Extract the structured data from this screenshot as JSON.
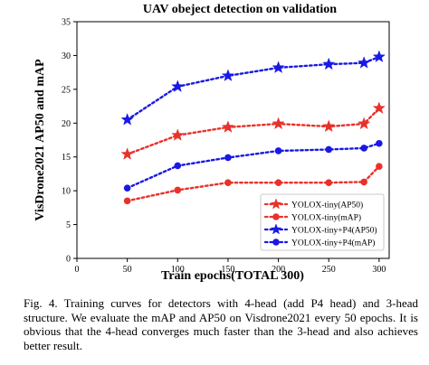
{
  "chart_data": {
    "type": "line",
    "title": "UAV obeject detection on validation",
    "xlabel": "Train epochs(TOTAL 300)",
    "ylabel": "VisDrone2021 AP50 and mAP",
    "xlim": [
      0,
      310
    ],
    "ylim": [
      0,
      35
    ],
    "xticks": [
      0,
      50,
      100,
      150,
      200,
      250,
      300
    ],
    "yticks": [
      0,
      5,
      10,
      15,
      20,
      25,
      30,
      35
    ],
    "grid": false,
    "legend_position": "lower-right",
    "x": [
      50,
      100,
      150,
      200,
      250,
      285,
      300
    ],
    "series": [
      {
        "name": "YOLOX-tiny(AP50)",
        "values": [
          15.4,
          18.2,
          19.4,
          19.9,
          19.5,
          19.9,
          22.2
        ],
        "color": "#e8312a",
        "marker": "star"
      },
      {
        "name": "YOLOX-tiny(mAP)",
        "values": [
          8.5,
          10.1,
          11.2,
          11.2,
          11.2,
          11.3,
          13.6
        ],
        "color": "#e8312a",
        "marker": "circle"
      },
      {
        "name": "YOLOX-tiny+P4(AP50)",
        "values": [
          20.5,
          25.4,
          27.0,
          28.2,
          28.7,
          28.9,
          29.8
        ],
        "color": "#1919e6",
        "marker": "star"
      },
      {
        "name": "YOLOX-tiny+P4(mAP)",
        "values": [
          10.4,
          13.7,
          14.9,
          15.9,
          16.1,
          16.3,
          17.0
        ],
        "color": "#1919e6",
        "marker": "circle"
      }
    ]
  },
  "caption": "Fig. 4.  Training curves for detectors with 4-head (add P4 head) and 3-head structure. We evaluate the mAP and AP50 on Visdrone2021 every 50 epochs. It is obvious that the 4-head converges much faster than the 3-head and also achieves better result."
}
